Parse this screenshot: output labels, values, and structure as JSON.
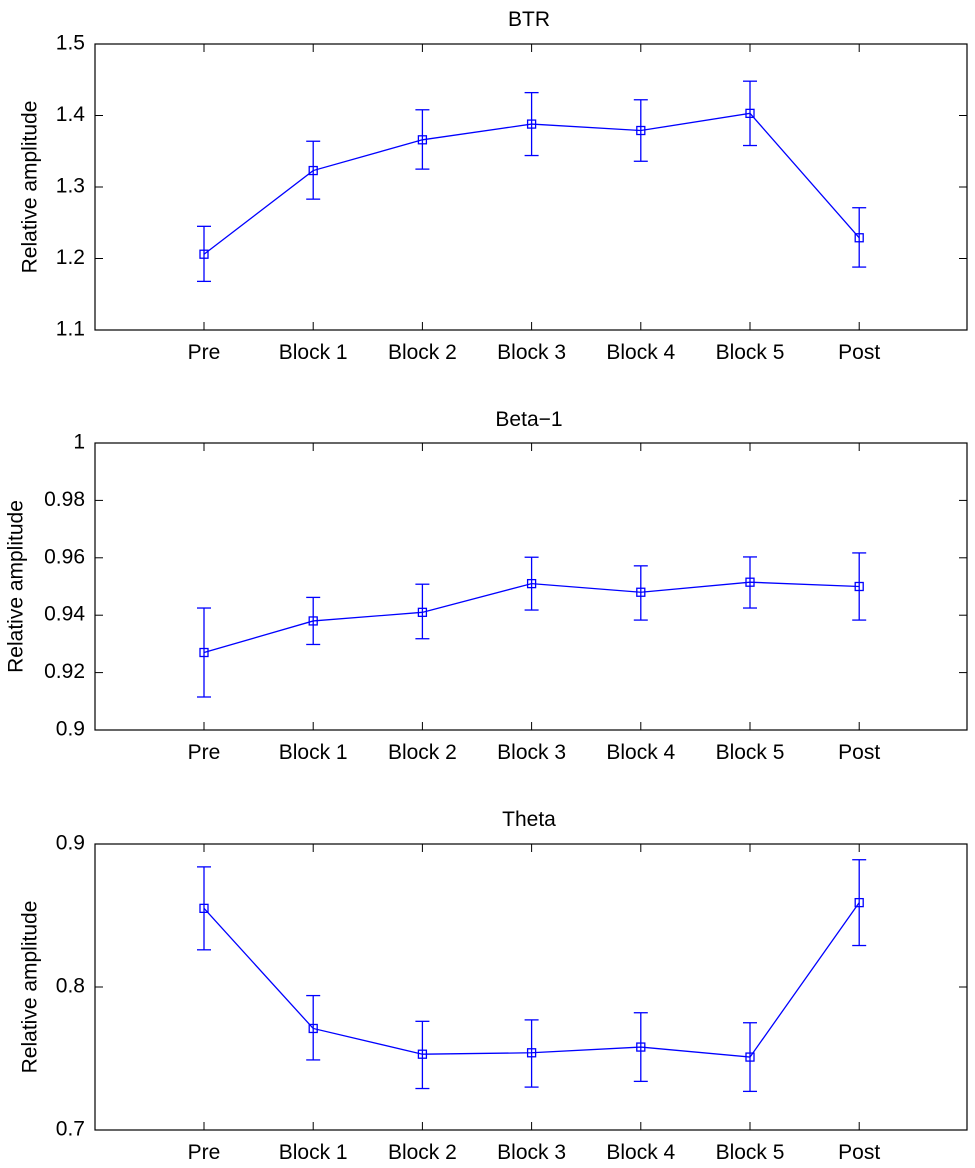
{
  "chart_data": [
    {
      "type": "line",
      "title": "BTR",
      "xlabel": "",
      "ylabel": "Relative amplitude",
      "categories": [
        "Pre",
        "Block 1",
        "Block 2",
        "Block 3",
        "Block 4",
        "Block 5",
        "Post"
      ],
      "ylim": [
        1.1,
        1.5
      ],
      "yticks": [
        1.1,
        1.2,
        1.3,
        1.4,
        1.5
      ],
      "ytick_labels": [
        "1.1",
        "1.2",
        "1.3",
        "1.4",
        "1.5"
      ],
      "grid": false,
      "series": [
        {
          "name": "BTR",
          "color": "#0000ff",
          "marker": "square",
          "values": [
            1.206,
            1.323,
            1.366,
            1.388,
            1.379,
            1.403,
            1.229
          ],
          "err_low": [
            1.168,
            1.283,
            1.325,
            1.344,
            1.336,
            1.358,
            1.188
          ],
          "err_high": [
            1.245,
            1.364,
            1.408,
            1.432,
            1.422,
            1.448,
            1.271
          ]
        }
      ]
    },
    {
      "type": "line",
      "title": "Beta−1",
      "xlabel": "",
      "ylabel": "Relative amplitude",
      "categories": [
        "Pre",
        "Block 1",
        "Block 2",
        "Block 3",
        "Block 4",
        "Block 5",
        "Post"
      ],
      "ylim": [
        0.9,
        1.0
      ],
      "yticks": [
        0.9,
        0.92,
        0.94,
        0.96,
        0.98,
        1.0
      ],
      "ytick_labels": [
        "0.9",
        "0.92",
        "0.94",
        "0.96",
        "0.98",
        "1"
      ],
      "grid": false,
      "series": [
        {
          "name": "Beta−1",
          "color": "#0000ff",
          "marker": "square",
          "values": [
            0.927,
            0.938,
            0.941,
            0.951,
            0.948,
            0.9515,
            0.95
          ],
          "err_low": [
            0.9115,
            0.9298,
            0.9318,
            0.9418,
            0.9383,
            0.9425,
            0.9383
          ],
          "err_high": [
            0.9425,
            0.9462,
            0.9508,
            0.9602,
            0.9572,
            0.9603,
            0.9617
          ]
        }
      ]
    },
    {
      "type": "line",
      "title": "Theta",
      "xlabel": "",
      "ylabel": "Relative amplitude",
      "categories": [
        "Pre",
        "Block 1",
        "Block 2",
        "Block 3",
        "Block 4",
        "Block 5",
        "Post"
      ],
      "ylim": [
        0.7,
        0.9
      ],
      "yticks": [
        0.7,
        0.8,
        0.9
      ],
      "ytick_labels": [
        "0.7",
        "0.8",
        "0.9"
      ],
      "grid": false,
      "series": [
        {
          "name": "Theta",
          "color": "#0000ff",
          "marker": "square",
          "values": [
            0.855,
            0.771,
            0.753,
            0.754,
            0.758,
            0.751,
            0.859
          ],
          "err_low": [
            0.826,
            0.749,
            0.729,
            0.73,
            0.734,
            0.727,
            0.829
          ],
          "err_high": [
            0.884,
            0.794,
            0.776,
            0.777,
            0.782,
            0.775,
            0.889
          ]
        }
      ]
    }
  ]
}
